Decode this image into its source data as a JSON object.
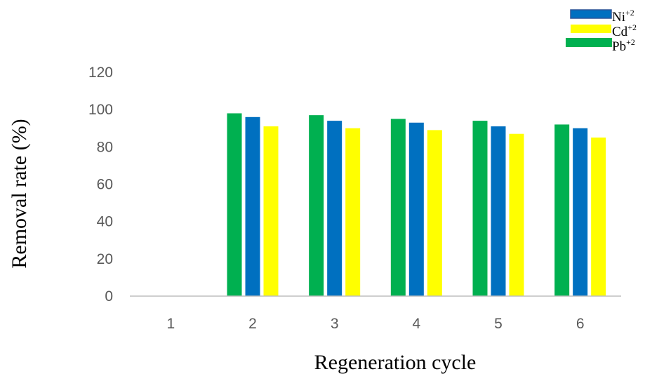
{
  "chart_data": {
    "type": "bar",
    "categories": [
      "1",
      "2",
      "3",
      "4",
      "5",
      "6"
    ],
    "series": [
      {
        "name": "Pb",
        "charge": "+2",
        "color": "#00b050",
        "values": [
          null,
          98,
          97,
          95,
          94,
          92
        ]
      },
      {
        "name": "Ni",
        "charge": "+2",
        "color": "#0070c0",
        "values": [
          null,
          96,
          94,
          93,
          91,
          90
        ]
      },
      {
        "name": "Cd",
        "charge": "+2",
        "color": "#ffff00",
        "values": [
          null,
          91,
          90,
          89,
          87,
          85
        ]
      }
    ],
    "legend_order": [
      1,
      2,
      0
    ],
    "xlabel": "Regeneration cycle",
    "ylabel": "Removal rate (%)",
    "ylim": [
      0,
      120
    ],
    "yticks": [
      0,
      20,
      40,
      60,
      80,
      100,
      120
    ],
    "grid": false,
    "legend_position": "top-right"
  }
}
